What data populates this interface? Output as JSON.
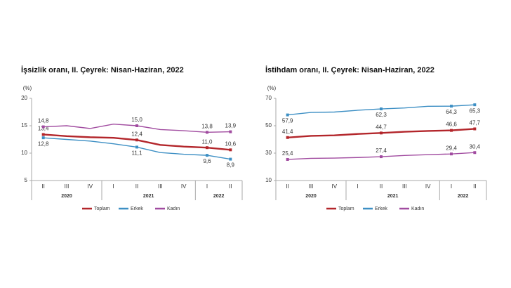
{
  "chart_data": [
    {
      "type": "line",
      "title": "İşsizlik oranı, II. Çeyrek: Nisan-Haziran, 2022",
      "y_unit": "(%)",
      "categories": [
        "II",
        "III",
        "IV",
        "I",
        "II",
        "III",
        "IV",
        "I",
        "II"
      ],
      "category_groups": [
        "2020",
        "2020",
        "2020",
        "2021",
        "2021",
        "2021",
        "2021",
        "2022",
        "2022"
      ],
      "ylim": [
        5,
        20
      ],
      "yticks": [
        5,
        10,
        15,
        20
      ],
      "series": [
        {
          "name": "Toplam",
          "color": "#b3262b",
          "values": [
            13.4,
            13.1,
            12.9,
            12.8,
            12.4,
            11.5,
            11.2,
            11.0,
            10.6
          ],
          "value_labels": [
            "13,4",
            null,
            null,
            null,
            "12,4",
            null,
            null,
            "11,0",
            "10,6"
          ]
        },
        {
          "name": "Erkek",
          "color": "#3d8fc4",
          "values": [
            12.8,
            12.5,
            12.2,
            11.7,
            11.1,
            10.1,
            9.8,
            9.6,
            8.9
          ],
          "value_labels": [
            "12,8",
            null,
            null,
            null,
            "11,1",
            null,
            null,
            "9,6",
            "8,9"
          ]
        },
        {
          "name": "Kadın",
          "color": "#a14ca0",
          "values": [
            14.8,
            15.0,
            14.5,
            15.3,
            15.0,
            14.3,
            14.1,
            13.8,
            13.9
          ],
          "value_labels": [
            "14,8",
            null,
            null,
            null,
            "15,0",
            null,
            null,
            "13,8",
            "13,9"
          ]
        }
      ]
    },
    {
      "type": "line",
      "title": "İstihdam oranı, II. Çeyrek: Nisan-Haziran, 2022",
      "y_unit": "(%)",
      "categories": [
        "II",
        "III",
        "IV",
        "I",
        "II",
        "III",
        "IV",
        "I",
        "II"
      ],
      "category_groups": [
        "2020",
        "2020",
        "2020",
        "2021",
        "2021",
        "2021",
        "2021",
        "2022",
        "2022"
      ],
      "ylim": [
        10,
        70
      ],
      "yticks": [
        10,
        30,
        50,
        70
      ],
      "series": [
        {
          "name": "Toplam",
          "color": "#b3262b",
          "values": [
            41.4,
            42.6,
            43.0,
            44.0,
            44.7,
            45.6,
            46.2,
            46.6,
            47.7
          ],
          "value_labels": [
            "41,4",
            null,
            null,
            null,
            "44,7",
            null,
            null,
            "46,6",
            "47,7"
          ]
        },
        {
          "name": "Erkek",
          "color": "#3d8fc4",
          "values": [
            57.9,
            59.7,
            60.0,
            61.3,
            62.3,
            63.0,
            64.2,
            64.3,
            65.3
          ],
          "value_labels": [
            "57,9",
            null,
            null,
            null,
            "62,3",
            null,
            null,
            "64,3",
            "65,3"
          ]
        },
        {
          "name": "Kadın",
          "color": "#a14ca0",
          "values": [
            25.4,
            26.2,
            26.4,
            26.8,
            27.4,
            28.3,
            28.9,
            29.4,
            30.4
          ],
          "value_labels": [
            "25,4",
            null,
            null,
            null,
            "27,4",
            null,
            null,
            "29,4",
            "30,4"
          ]
        }
      ]
    }
  ]
}
